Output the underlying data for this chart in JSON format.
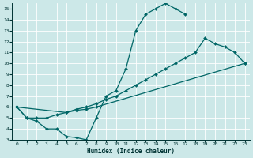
{
  "bg_color": "#cce8e8",
  "grid_color": "#ffffff",
  "line_color": "#006666",
  "text_color": "#003333",
  "xlabel": "Humidex (Indice chaleur)",
  "xlim": [
    -0.5,
    23
  ],
  "ylim": [
    3,
    15.5
  ],
  "curve1_x": [
    0,
    1,
    2,
    3,
    4,
    5,
    6,
    7,
    8,
    9,
    10,
    11,
    12,
    13,
    14,
    15,
    16,
    17
  ],
  "curve1_y": [
    6.0,
    5.0,
    4.7,
    4.0,
    4.0,
    3.3,
    3.2,
    3.0,
    5.0,
    7.0,
    7.5,
    9.5,
    13.0,
    14.5,
    15.0,
    15.5,
    15.0,
    14.5
  ],
  "curve2_x": [
    0,
    1,
    2,
    3,
    4,
    5,
    6,
    7,
    8,
    9,
    10,
    11,
    12,
    13,
    14,
    15,
    16,
    17,
    18,
    19,
    20,
    21,
    22,
    23
  ],
  "curve2_y": [
    6.0,
    5.0,
    5.0,
    5.0,
    5.3,
    5.5,
    5.8,
    6.0,
    6.3,
    6.7,
    7.0,
    7.5,
    8.0,
    8.5,
    9.0,
    9.5,
    10.0,
    10.5,
    11.0,
    12.3,
    11.8,
    11.5,
    11.0,
    10.0
  ],
  "curve3_x": [
    0,
    5,
    6,
    7,
    8,
    23
  ],
  "curve3_y": [
    6.0,
    5.5,
    5.7,
    5.8,
    6.0,
    10.0
  ]
}
